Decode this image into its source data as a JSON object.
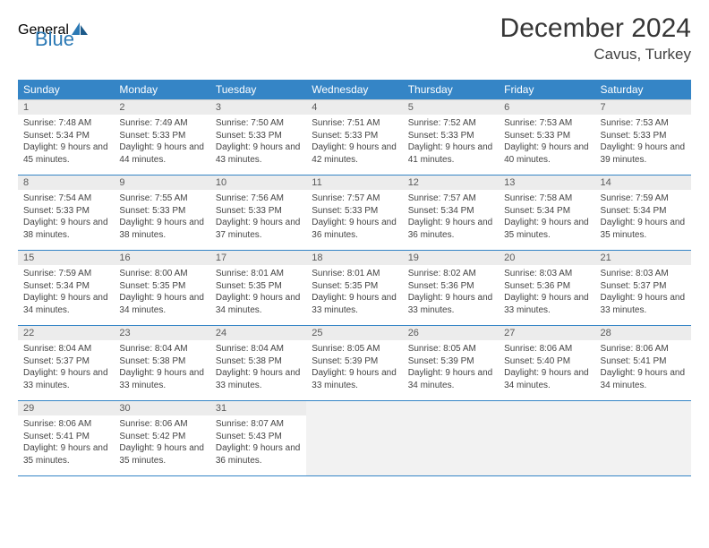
{
  "logo": {
    "text1": "General",
    "text2": "Blue"
  },
  "title": "December 2024",
  "location": "Cavus, Turkey",
  "colors": {
    "header_bg": "#3585c6",
    "header_fg": "#ffffff",
    "daynum_bg": "#ececec",
    "daynum_fg": "#5a5a5a",
    "cell_border": "#3585c6",
    "logo_gray": "#6b6b6b",
    "logo_blue": "#2b79b5"
  },
  "weekdays": [
    "Sunday",
    "Monday",
    "Tuesday",
    "Wednesday",
    "Thursday",
    "Friday",
    "Saturday"
  ],
  "weeks": [
    [
      {
        "n": "1",
        "sr": "7:48 AM",
        "ss": "5:34 PM",
        "dl": "9 hours and 45 minutes."
      },
      {
        "n": "2",
        "sr": "7:49 AM",
        "ss": "5:33 PM",
        "dl": "9 hours and 44 minutes."
      },
      {
        "n": "3",
        "sr": "7:50 AM",
        "ss": "5:33 PM",
        "dl": "9 hours and 43 minutes."
      },
      {
        "n": "4",
        "sr": "7:51 AM",
        "ss": "5:33 PM",
        "dl": "9 hours and 42 minutes."
      },
      {
        "n": "5",
        "sr": "7:52 AM",
        "ss": "5:33 PM",
        "dl": "9 hours and 41 minutes."
      },
      {
        "n": "6",
        "sr": "7:53 AM",
        "ss": "5:33 PM",
        "dl": "9 hours and 40 minutes."
      },
      {
        "n": "7",
        "sr": "7:53 AM",
        "ss": "5:33 PM",
        "dl": "9 hours and 39 minutes."
      }
    ],
    [
      {
        "n": "8",
        "sr": "7:54 AM",
        "ss": "5:33 PM",
        "dl": "9 hours and 38 minutes."
      },
      {
        "n": "9",
        "sr": "7:55 AM",
        "ss": "5:33 PM",
        "dl": "9 hours and 38 minutes."
      },
      {
        "n": "10",
        "sr": "7:56 AM",
        "ss": "5:33 PM",
        "dl": "9 hours and 37 minutes."
      },
      {
        "n": "11",
        "sr": "7:57 AM",
        "ss": "5:33 PM",
        "dl": "9 hours and 36 minutes."
      },
      {
        "n": "12",
        "sr": "7:57 AM",
        "ss": "5:34 PM",
        "dl": "9 hours and 36 minutes."
      },
      {
        "n": "13",
        "sr": "7:58 AM",
        "ss": "5:34 PM",
        "dl": "9 hours and 35 minutes."
      },
      {
        "n": "14",
        "sr": "7:59 AM",
        "ss": "5:34 PM",
        "dl": "9 hours and 35 minutes."
      }
    ],
    [
      {
        "n": "15",
        "sr": "7:59 AM",
        "ss": "5:34 PM",
        "dl": "9 hours and 34 minutes."
      },
      {
        "n": "16",
        "sr": "8:00 AM",
        "ss": "5:35 PM",
        "dl": "9 hours and 34 minutes."
      },
      {
        "n": "17",
        "sr": "8:01 AM",
        "ss": "5:35 PM",
        "dl": "9 hours and 34 minutes."
      },
      {
        "n": "18",
        "sr": "8:01 AM",
        "ss": "5:35 PM",
        "dl": "9 hours and 33 minutes."
      },
      {
        "n": "19",
        "sr": "8:02 AM",
        "ss": "5:36 PM",
        "dl": "9 hours and 33 minutes."
      },
      {
        "n": "20",
        "sr": "8:03 AM",
        "ss": "5:36 PM",
        "dl": "9 hours and 33 minutes."
      },
      {
        "n": "21",
        "sr": "8:03 AM",
        "ss": "5:37 PM",
        "dl": "9 hours and 33 minutes."
      }
    ],
    [
      {
        "n": "22",
        "sr": "8:04 AM",
        "ss": "5:37 PM",
        "dl": "9 hours and 33 minutes."
      },
      {
        "n": "23",
        "sr": "8:04 AM",
        "ss": "5:38 PM",
        "dl": "9 hours and 33 minutes."
      },
      {
        "n": "24",
        "sr": "8:04 AM",
        "ss": "5:38 PM",
        "dl": "9 hours and 33 minutes."
      },
      {
        "n": "25",
        "sr": "8:05 AM",
        "ss": "5:39 PM",
        "dl": "9 hours and 33 minutes."
      },
      {
        "n": "26",
        "sr": "8:05 AM",
        "ss": "5:39 PM",
        "dl": "9 hours and 34 minutes."
      },
      {
        "n": "27",
        "sr": "8:06 AM",
        "ss": "5:40 PM",
        "dl": "9 hours and 34 minutes."
      },
      {
        "n": "28",
        "sr": "8:06 AM",
        "ss": "5:41 PM",
        "dl": "9 hours and 34 minutes."
      }
    ],
    [
      {
        "n": "29",
        "sr": "8:06 AM",
        "ss": "5:41 PM",
        "dl": "9 hours and 35 minutes."
      },
      {
        "n": "30",
        "sr": "8:06 AM",
        "ss": "5:42 PM",
        "dl": "9 hours and 35 minutes."
      },
      {
        "n": "31",
        "sr": "8:07 AM",
        "ss": "5:43 PM",
        "dl": "9 hours and 36 minutes."
      },
      null,
      null,
      null,
      null
    ]
  ],
  "labels": {
    "sunrise": "Sunrise: ",
    "sunset": "Sunset: ",
    "daylight": "Daylight: "
  }
}
